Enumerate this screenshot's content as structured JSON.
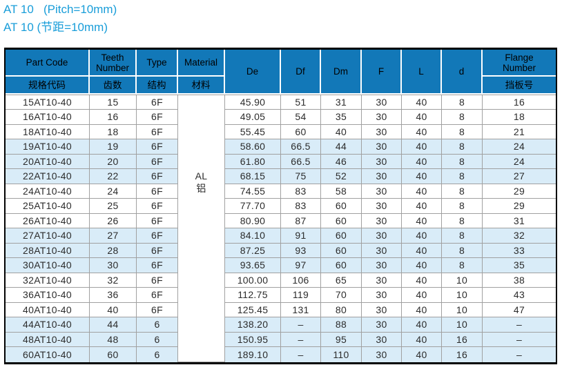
{
  "title": {
    "line1": "AT 10   (Pitch=10mm)",
    "line2": "AT 10 (节距=10mm)"
  },
  "colors": {
    "header_bg": "#1278b8",
    "row_alt_bg": "#d9ecf8",
    "title_blue": "#189dd9",
    "grid_line": "#a0a0a0",
    "outer_border": "#000000"
  },
  "table": {
    "headers": {
      "part_code": {
        "en": "Part Code",
        "zh": "规格代码"
      },
      "teeth": {
        "en": "Teeth Number",
        "zh": "齿数"
      },
      "type": {
        "en": "Type",
        "zh": "结构"
      },
      "material": {
        "en": "Material",
        "zh": "材料"
      },
      "de": "De",
      "df": "Df",
      "dm": "Dm",
      "f": "F",
      "l": "L",
      "d": "d",
      "flange": {
        "en": "Flange Number",
        "zh": "挡板号"
      }
    },
    "material_value": {
      "en": "AL",
      "zh": "铝"
    },
    "rows": [
      {
        "part_code": "15AT10-40",
        "teeth": "15",
        "type": "6F",
        "de": "45.90",
        "df": "51",
        "dm": "31",
        "f": "30",
        "l": "40",
        "d": "8",
        "flange": "16",
        "highlight": false
      },
      {
        "part_code": "16AT10-40",
        "teeth": "16",
        "type": "6F",
        "de": "49.05",
        "df": "54",
        "dm": "35",
        "f": "30",
        "l": "40",
        "d": "8",
        "flange": "18",
        "highlight": false
      },
      {
        "part_code": "18AT10-40",
        "teeth": "18",
        "type": "6F",
        "de": "55.45",
        "df": "60",
        "dm": "40",
        "f": "30",
        "l": "40",
        "d": "8",
        "flange": "21",
        "highlight": false
      },
      {
        "part_code": "19AT10-40",
        "teeth": "19",
        "type": "6F",
        "de": "58.60",
        "df": "66.5",
        "dm": "44",
        "f": "30",
        "l": "40",
        "d": "8",
        "flange": "24",
        "highlight": true
      },
      {
        "part_code": "20AT10-40",
        "teeth": "20",
        "type": "6F",
        "de": "61.80",
        "df": "66.5",
        "dm": "46",
        "f": "30",
        "l": "40",
        "d": "8",
        "flange": "24",
        "highlight": true
      },
      {
        "part_code": "22AT10-40",
        "teeth": "22",
        "type": "6F",
        "de": "68.15",
        "df": "75",
        "dm": "52",
        "f": "30",
        "l": "40",
        "d": "8",
        "flange": "27",
        "highlight": true
      },
      {
        "part_code": "24AT10-40",
        "teeth": "24",
        "type": "6F",
        "de": "74.55",
        "df": "83",
        "dm": "58",
        "f": "30",
        "l": "40",
        "d": "8",
        "flange": "29",
        "highlight": false
      },
      {
        "part_code": "25AT10-40",
        "teeth": "25",
        "type": "6F",
        "de": "77.70",
        "df": "83",
        "dm": "60",
        "f": "30",
        "l": "40",
        "d": "8",
        "flange": "29",
        "highlight": false
      },
      {
        "part_code": "26AT10-40",
        "teeth": "26",
        "type": "6F",
        "de": "80.90",
        "df": "87",
        "dm": "60",
        "f": "30",
        "l": "40",
        "d": "8",
        "flange": "31",
        "highlight": false
      },
      {
        "part_code": "27AT10-40",
        "teeth": "27",
        "type": "6F",
        "de": "84.10",
        "df": "91",
        "dm": "60",
        "f": "30",
        "l": "40",
        "d": "8",
        "flange": "32",
        "highlight": true
      },
      {
        "part_code": "28AT10-40",
        "teeth": "28",
        "type": "6F",
        "de": "87.25",
        "df": "93",
        "dm": "60",
        "f": "30",
        "l": "40",
        "d": "8",
        "flange": "33",
        "highlight": true
      },
      {
        "part_code": "30AT10-40",
        "teeth": "30",
        "type": "6F",
        "de": "93.65",
        "df": "97",
        "dm": "60",
        "f": "30",
        "l": "40",
        "d": "8",
        "flange": "35",
        "highlight": true
      },
      {
        "part_code": "32AT10-40",
        "teeth": "32",
        "type": "6F",
        "de": "100.00",
        "df": "106",
        "dm": "65",
        "f": "30",
        "l": "40",
        "d": "10",
        "flange": "38",
        "highlight": false
      },
      {
        "part_code": "36AT10-40",
        "teeth": "36",
        "type": "6F",
        "de": "112.75",
        "df": "119",
        "dm": "70",
        "f": "30",
        "l": "40",
        "d": "10",
        "flange": "43",
        "highlight": false
      },
      {
        "part_code": "40AT10-40",
        "teeth": "40",
        "type": "6F",
        "de": "125.45",
        "df": "131",
        "dm": "80",
        "f": "30",
        "l": "40",
        "d": "10",
        "flange": "47",
        "highlight": false
      },
      {
        "part_code": "44AT10-40",
        "teeth": "44",
        "type": "6",
        "de": "138.20",
        "df": "–",
        "dm": "88",
        "f": "30",
        "l": "40",
        "d": "10",
        "flange": "–",
        "highlight": true
      },
      {
        "part_code": "48AT10-40",
        "teeth": "48",
        "type": "6",
        "de": "150.95",
        "df": "–",
        "dm": "95",
        "f": "30",
        "l": "40",
        "d": "16",
        "flange": "–",
        "highlight": true
      },
      {
        "part_code": "60AT10-40",
        "teeth": "60",
        "type": "6",
        "de": "189.10",
        "df": "–",
        "dm": "110",
        "f": "30",
        "l": "40",
        "d": "16",
        "flange": "–",
        "highlight": true
      }
    ]
  }
}
